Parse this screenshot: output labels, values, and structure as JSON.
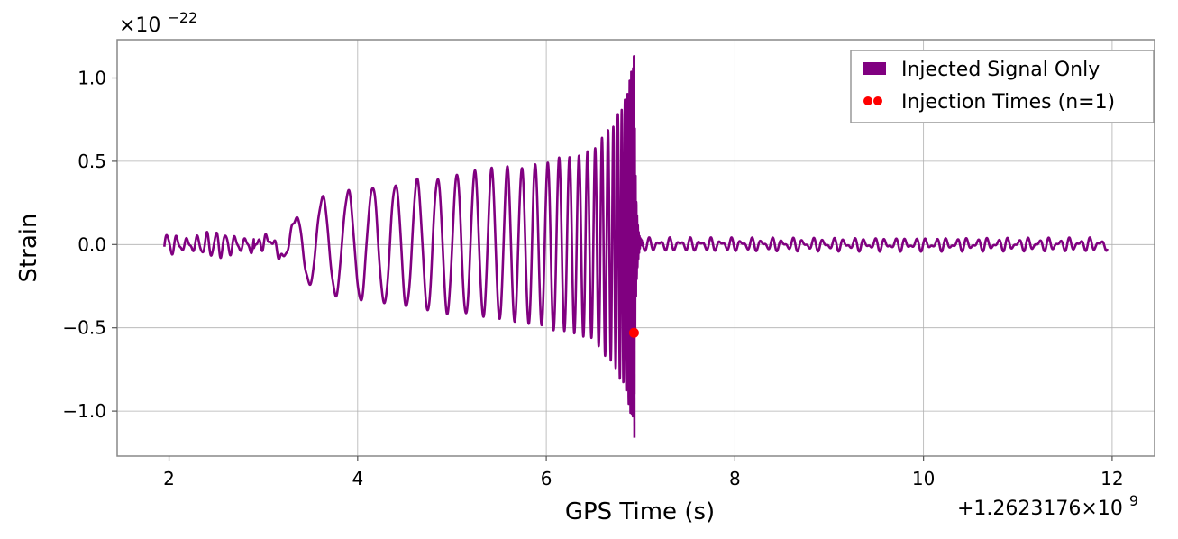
{
  "chart_data": {
    "type": "line",
    "xlabel": "GPS Time (s)",
    "ylabel": "Strain",
    "x_offset_label": "+1.2623176×10",
    "x_offset_exponent": "9",
    "y_multiplier_label": "×10",
    "y_multiplier_exponent": "−22",
    "xlim": [
      1.45,
      12.45
    ],
    "ylim": [
      -1.27,
      1.23
    ],
    "x_ticks": [
      2,
      4,
      6,
      8,
      10,
      12
    ],
    "x_tick_labels": [
      "2",
      "4",
      "6",
      "8",
      "10",
      "12"
    ],
    "y_ticks": [
      1.0,
      0.5,
      0.0,
      -0.5,
      -1.0
    ],
    "y_tick_labels": [
      "1.0",
      "0.5",
      "0.0",
      "−0.5",
      "−1.0"
    ],
    "grid": true,
    "legend_position": "top-right",
    "series": [
      {
        "name": "Injected Signal Only",
        "color": "#800080",
        "kind": "line",
        "description_points": {
          "x_start": 1.95,
          "x_end": 11.95,
          "merger_x": 6.93,
          "peak_max": 1.13,
          "peak_min": -1.16,
          "envelope": [
            {
              "x": 1.95,
              "amp": 0.05
            },
            {
              "x": 2.8,
              "amp": 0.05
            },
            {
              "x": 3.2,
              "amp": 0.13
            },
            {
              "x": 3.6,
              "amp": 0.28
            },
            {
              "x": 4.0,
              "amp": 0.33
            },
            {
              "x": 4.6,
              "amp": 0.38
            },
            {
              "x": 5.2,
              "amp": 0.43
            },
            {
              "x": 5.8,
              "amp": 0.47
            },
            {
              "x": 6.2,
              "amp": 0.52
            },
            {
              "x": 6.5,
              "amp": 0.58
            },
            {
              "x": 6.7,
              "amp": 0.7
            },
            {
              "x": 6.85,
              "amp": 0.88
            },
            {
              "x": 6.93,
              "amp": 1.14
            },
            {
              "x": 6.97,
              "amp": 0.32
            },
            {
              "x": 7.05,
              "amp": 0.03
            },
            {
              "x": 11.95,
              "amp": 0.04
            }
          ]
        }
      },
      {
        "name": "Injection Times (n=1)",
        "color": "#ff0000",
        "kind": "scatter",
        "points": [
          {
            "x": 6.93,
            "y": -0.53
          }
        ]
      }
    ]
  }
}
